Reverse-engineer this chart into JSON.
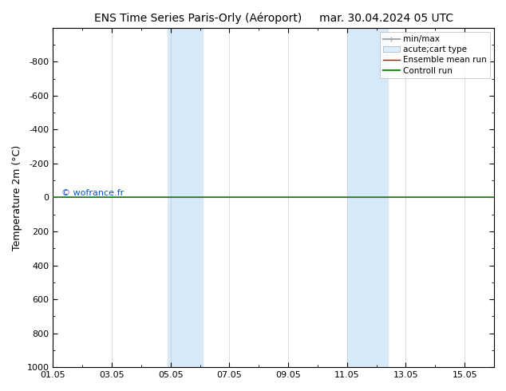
{
  "title": "ENS Time Series Paris-Orly (Aéroport)     mar. 30.04.2024 05 UTC",
  "ylabel": "Temperature 2m (°C)",
  "copyright": "© wofrance.fr",
  "copyright_color": "#0055cc",
  "xtick_labels": [
    "01.05",
    "03.05",
    "05.05",
    "07.05",
    "09.05",
    "11.05",
    "13.05",
    "15.05"
  ],
  "xtick_positions": [
    0,
    2,
    4,
    6,
    8,
    10,
    12,
    14
  ],
  "ylim": [
    -1000,
    1000
  ],
  "ytick_positions": [
    -800,
    -600,
    -400,
    -200,
    0,
    200,
    400,
    600,
    800,
    1000
  ],
  "ytick_labels": [
    "-800",
    "-600",
    "-400",
    "-200",
    "0",
    "200",
    "400",
    "600",
    "800",
    "1000"
  ],
  "shaded_bands": [
    {
      "x_start": 3.85,
      "x_end": 4.55,
      "color": "#d8eaf7"
    },
    {
      "x_start": 4.55,
      "x_end": 5.45,
      "color": "#ddeeff"
    },
    {
      "x_start": 10.0,
      "x_end": 10.85,
      "color": "#ddeeff"
    },
    {
      "x_start": 10.85,
      "x_end": 11.75,
      "color": "#d8eaf7"
    }
  ],
  "horizontal_line_y": 0,
  "horizontal_line_color": "#228b22",
  "horizontal_line_color2": "#cc0000",
  "background_color": "#ffffff",
  "legend_entries": [
    {
      "label": "min/max",
      "color": "#aaaaaa",
      "lw": 1.5,
      "type": "hline_caps"
    },
    {
      "label": "acute;cart type",
      "color": "#ddeeff",
      "edge": "#aaaaaa",
      "type": "rect"
    },
    {
      "label": "Ensemble mean run",
      "color": "#cc0000",
      "lw": 1.0,
      "type": "line"
    },
    {
      "label": "Controll run",
      "color": "#228b22",
      "lw": 1.5,
      "type": "line"
    }
  ],
  "title_fontsize": 10,
  "axis_label_fontsize": 9,
  "tick_fontsize": 8,
  "legend_fontsize": 7.5,
  "copyright_fontsize": 8
}
